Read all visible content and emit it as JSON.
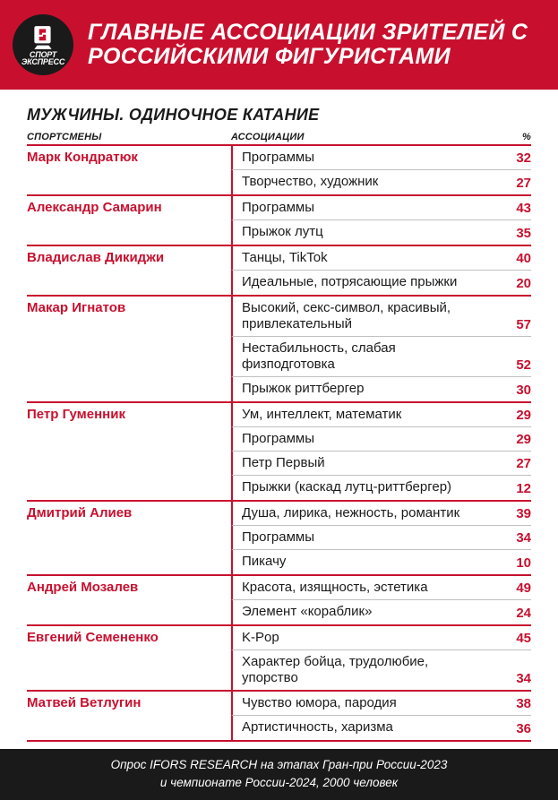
{
  "brand": {
    "line1": "СПОРТ",
    "line2": "ЭКСПРЕСС"
  },
  "colors": {
    "primary_red": "#c8102e",
    "dark": "#1a1a1a",
    "divider": "#c0c0c0",
    "white": "#ffffff"
  },
  "title": "ГЛАВНЫЕ АССОЦИАЦИИ ЗРИТЕЛЕЙ С РОССИЙСКИМИ ФИГУРИСТАМИ",
  "subtitle": "МУЖЧИНЫ. ОДИНОЧНОЕ КАТАНИЕ",
  "columns": {
    "athlete": "СПОРТСМЕНЫ",
    "assoc": "АССОЦИАЦИИ",
    "pct": "%"
  },
  "athletes": [
    {
      "name": "Марк Кондратюк",
      "rows": [
        {
          "assoc": "Программы",
          "pct": 32
        },
        {
          "assoc": "Творчество, художник",
          "pct": 27
        }
      ]
    },
    {
      "name": "Александр Самарин",
      "rows": [
        {
          "assoc": "Программы",
          "pct": 43
        },
        {
          "assoc": "Прыжок лутц",
          "pct": 35
        }
      ]
    },
    {
      "name": "Владислав Дикиджи",
      "rows": [
        {
          "assoc": "Танцы, TikTok",
          "pct": 40
        },
        {
          "assoc": "Идеальные, потрясающие прыжки",
          "pct": 20
        }
      ]
    },
    {
      "name": "Макар Игнатов",
      "rows": [
        {
          "assoc": "Высокий, секс-символ, красивый, привлекательный",
          "pct": 57
        },
        {
          "assoc": "Нестабильность, слабая физподготовка",
          "pct": 52
        },
        {
          "assoc": "Прыжок риттбергер",
          "pct": 30
        }
      ]
    },
    {
      "name": "Петр Гуменник",
      "rows": [
        {
          "assoc": "Ум, интеллект, математик",
          "pct": 29
        },
        {
          "assoc": "Программы",
          "pct": 29
        },
        {
          "assoc": "Петр Первый",
          "pct": 27
        },
        {
          "assoc": "Прыжки (каскад лутц-риттбергер)",
          "pct": 12
        }
      ]
    },
    {
      "name": "Дмитрий Алиев",
      "rows": [
        {
          "assoc": "Душа, лирика, нежность, романтик",
          "pct": 39
        },
        {
          "assoc": "Программы",
          "pct": 34
        },
        {
          "assoc": "Пикачу",
          "pct": 10
        }
      ]
    },
    {
      "name": "Андрей Мозалев",
      "rows": [
        {
          "assoc": "Красота, изящность, эстетика",
          "pct": 49
        },
        {
          "assoc": "Элемент «кораблик»",
          "pct": 24
        }
      ]
    },
    {
      "name": "Евгений Семененко",
      "rows": [
        {
          "assoc": "K-Pop",
          "pct": 45
        },
        {
          "assoc": "Характер бойца, трудолюбие, упорство",
          "pct": 34
        }
      ]
    },
    {
      "name": "Матвей Ветлугин",
      "rows": [
        {
          "assoc": "Чувство юмора, пародия",
          "pct": 38
        },
        {
          "assoc": "Артистичность, харизма",
          "pct": 36
        }
      ]
    }
  ],
  "footer": {
    "line1": "Опрос IFORS RESEARCH на этапах Гран-при России-2023",
    "line2": "и чемпионате России-2024, 2000 человек"
  }
}
